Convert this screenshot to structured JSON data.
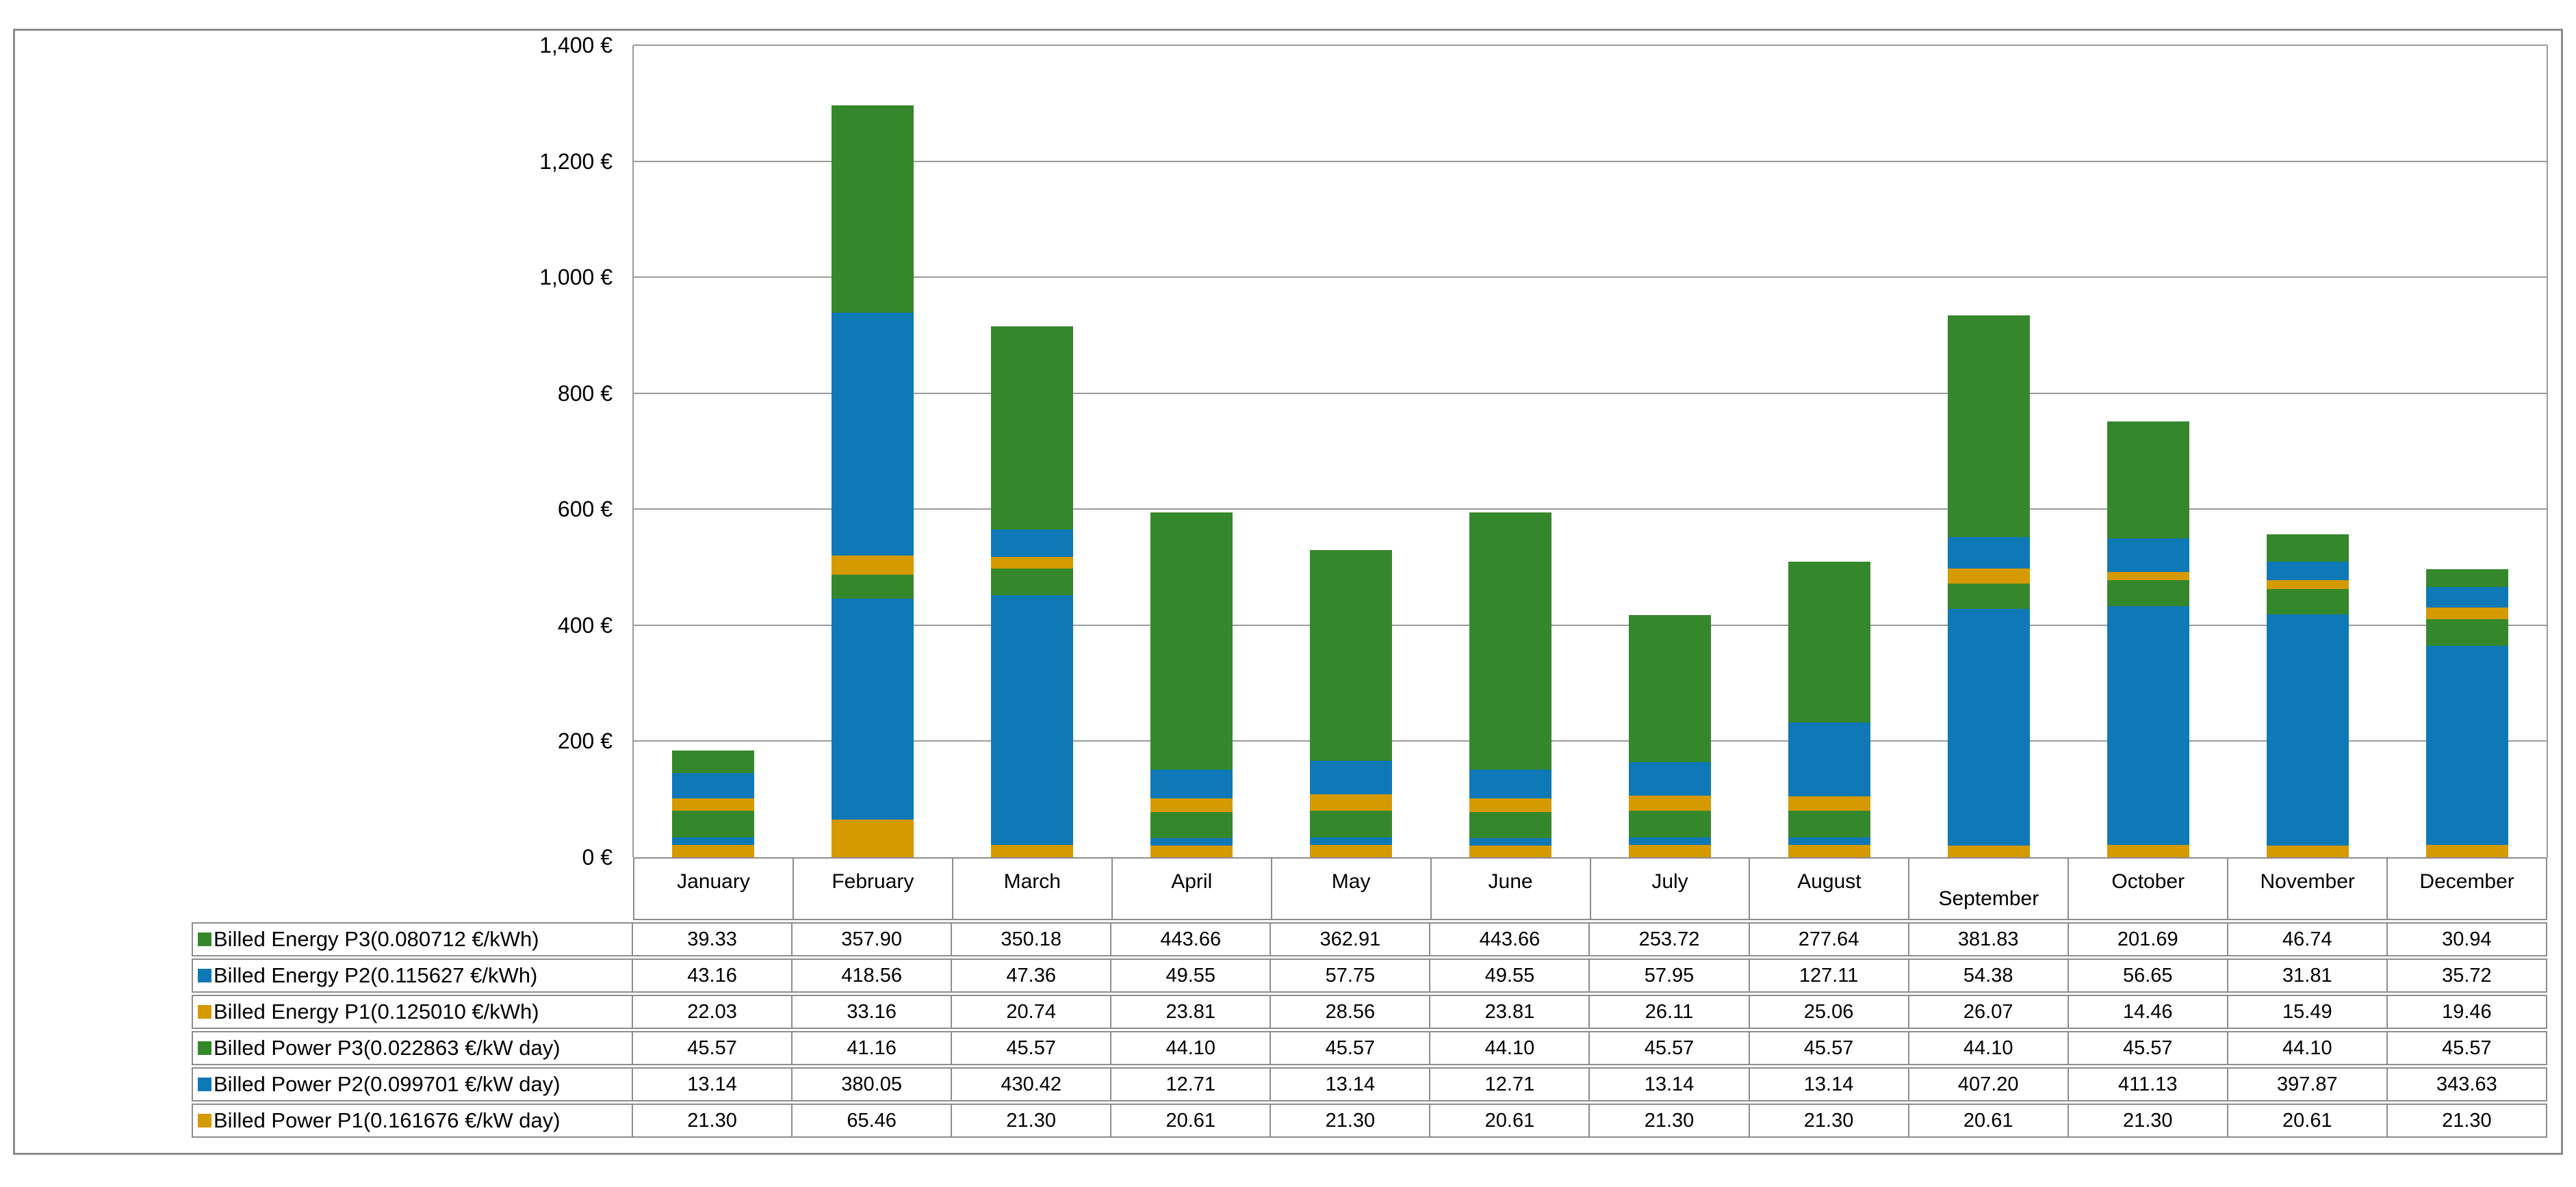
{
  "chart_data": {
    "type": "bar",
    "stacked": true,
    "title": "",
    "categories": [
      "January",
      "February",
      "March",
      "April",
      "May",
      "June",
      "July",
      "August",
      "September",
      "October",
      "November",
      "December"
    ],
    "series": [
      {
        "name": "Billed Energy P3(0.080712 €/kWh)",
        "color": "#35872c",
        "values": [
          "39.33",
          "357.90",
          "350.18",
          "443.66",
          "362.91",
          "443.66",
          "253.72",
          "277.64",
          "381.83",
          "201.69",
          "46.74",
          "30.94"
        ]
      },
      {
        "name": "Billed Energy P2(0.115627 €/kWh)",
        "color": "#0f78b6",
        "values": [
          "43.16",
          "418.56",
          "47.36",
          "49.55",
          "57.75",
          "49.55",
          "57.95",
          "127.11",
          "54.38",
          "56.65",
          "31.81",
          "35.72"
        ]
      },
      {
        "name": "Billed Energy P1(0.125010 €/kWh)",
        "color": "#d59a00",
        "values": [
          "22.03",
          "33.16",
          "20.74",
          "23.81",
          "28.56",
          "23.81",
          "26.11",
          "25.06",
          "26.07",
          "14.46",
          "15.49",
          "19.46"
        ]
      },
      {
        "name": "Billed Power P3(0.022863 €/kW day)",
        "color": "#35872c",
        "values": [
          "45.57",
          "41.16",
          "45.57",
          "44.10",
          "45.57",
          "44.10",
          "45.57",
          "45.57",
          "44.10",
          "45.57",
          "44.10",
          "45.57"
        ]
      },
      {
        "name": "Billed Power P2(0.099701 €/kW day)",
        "color": "#0f78b6",
        "values": [
          "13.14",
          "380.05",
          "430.42",
          "12.71",
          "13.14",
          "12.71",
          "13.14",
          "13.14",
          "407.20",
          "411.13",
          "397.87",
          "343.63"
        ]
      },
      {
        "name": "Billed Power P1(0.161676 €/kW day)",
        "color": "#d59a00",
        "values": [
          "21.30",
          "65.46",
          "21.30",
          "20.61",
          "21.30",
          "20.61",
          "21.30",
          "21.30",
          "20.61",
          "21.30",
          "20.61",
          "21.30"
        ]
      }
    ],
    "stack_order_bottom_to_top": [
      "Billed Power P1(0.161676 €/kW day)",
      "Billed Power P2(0.099701 €/kW day)",
      "Billed Power P3(0.022863 €/kW day)",
      "Billed Energy P1(0.125010 €/kWh)",
      "Billed Energy P2(0.115627 €/kWh)",
      "Billed Energy P3(0.080712 €/kWh)"
    ],
    "y_axis": {
      "min": 0,
      "max": 1400,
      "unit": "€",
      "ticks": [
        {
          "label": "0 €",
          "value": 0
        },
        {
          "label": "200 €",
          "value": 200
        },
        {
          "label": "400 €",
          "value": 400
        },
        {
          "label": "600 €",
          "value": 600
        },
        {
          "label": "800 €",
          "value": 800
        },
        {
          "label": "1,000 €",
          "value": 1000
        },
        {
          "label": "1,200 €",
          "value": 1200
        },
        {
          "label": "1,400 €",
          "value": 1400
        }
      ]
    },
    "grid": true,
    "legend_position": "table-left-column",
    "colors": {
      "green": "#35872c",
      "blue": "#0f78b6",
      "orange": "#d59a00"
    }
  }
}
